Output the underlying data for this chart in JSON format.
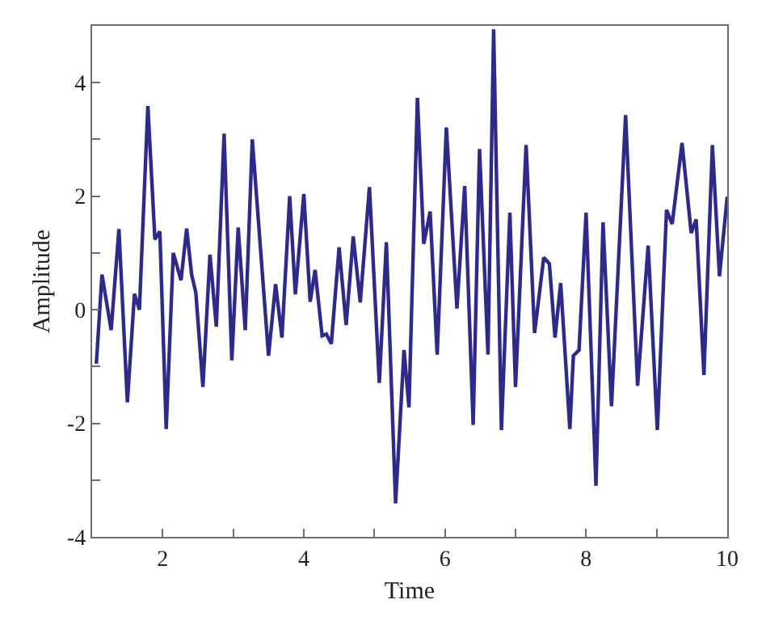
{
  "chart_data": {
    "type": "line",
    "xlabel": "Time",
    "ylabel": "Amplitude",
    "x": [
      1.06,
      1.14,
      1.27,
      1.38,
      1.5,
      1.6,
      1.67,
      1.79,
      1.89,
      1.96,
      2.05,
      2.15,
      2.26,
      2.34,
      2.41,
      2.47,
      2.57,
      2.67,
      2.76,
      2.87,
      2.98,
      3.07,
      3.17,
      3.27,
      3.5,
      3.6,
      3.69,
      3.8,
      3.88,
      4.0,
      4.09,
      4.16,
      4.26,
      4.32,
      4.39,
      4.5,
      4.6,
      4.7,
      4.8,
      4.93,
      5.07,
      5.17,
      5.3,
      5.42,
      5.49,
      5.61,
      5.7,
      5.79,
      5.89,
      6.02,
      6.17,
      6.28,
      6.4,
      6.49,
      6.61,
      6.69,
      6.8,
      6.92,
      7.0,
      7.15,
      7.27,
      7.4,
      7.48,
      7.56,
      7.64,
      7.77,
      7.82,
      7.9,
      8.0,
      8.14,
      8.24,
      8.36,
      8.56,
      8.73,
      8.88,
      9.01,
      9.14,
      9.22,
      9.36,
      9.49,
      9.56,
      9.67,
      9.79,
      9.89,
      10.0
    ],
    "series": [
      {
        "color": "#2e2a8a",
        "values": [
          -0.95,
          0.62,
          -0.36,
          1.42,
          -1.63,
          0.28,
          0.0,
          3.59,
          1.24,
          1.38,
          -2.1,
          1.0,
          0.52,
          1.43,
          0.62,
          0.3,
          -1.36,
          0.97,
          -0.3,
          3.1,
          -0.89,
          1.45,
          -0.36,
          3.0,
          -0.81,
          0.45,
          -0.49,
          2.0,
          0.27,
          2.04,
          0.14,
          0.7,
          -0.46,
          -0.43,
          -0.6,
          1.1,
          -0.27,
          1.29,
          0.13,
          2.16,
          -1.29,
          1.19,
          -3.41,
          -0.71,
          -1.72,
          3.73,
          1.16,
          1.73,
          -0.79,
          3.21,
          0.02,
          2.18,
          -2.03,
          2.83,
          -0.79,
          4.94,
          -2.12,
          1.71,
          -1.36,
          2.9,
          -0.41,
          0.92,
          0.81,
          -0.49,
          0.47,
          -2.1,
          -0.81,
          -0.71,
          1.71,
          -3.1,
          1.54,
          -1.7,
          3.43,
          -1.34,
          1.13,
          -2.12,
          1.76,
          1.51,
          2.94,
          1.35,
          1.59,
          -1.15,
          2.9,
          0.59,
          1.99
        ]
      }
    ],
    "xlim": [
      1,
      10
    ],
    "ylim": [
      -4,
      5
    ],
    "xticks": [
      2,
      {
        "value": 3,
        "label": null
      },
      4,
      {
        "value": 5,
        "label": null
      },
      6,
      {
        "value": 7,
        "label": null
      },
      8,
      {
        "value": 9,
        "label": null
      },
      10
    ],
    "yticks": [
      -4,
      {
        "value": -3,
        "label": null
      },
      -2,
      {
        "value": -1,
        "label": null
      },
      0,
      {
        "value": 1,
        "label": null
      },
      2,
      {
        "value": 3,
        "label": null
      },
      4
    ],
    "marker": "none",
    "line_style": "solid"
  }
}
